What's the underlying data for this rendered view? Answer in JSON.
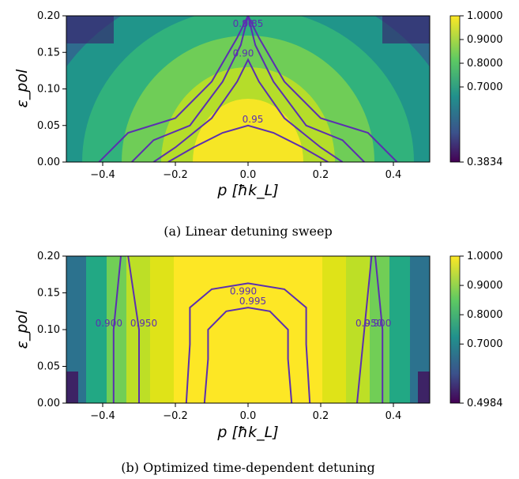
{
  "chart_data": [
    {
      "type": "heatmap",
      "caption": "(a) Linear detuning sweep",
      "xlabel": "p [ħk_L]",
      "ylabel": "ε_pol",
      "xlim": [
        -0.5,
        0.5
      ],
      "ylim": [
        0.0,
        0.2
      ],
      "x_ticks": [
        "−0.4",
        "−0.2",
        "0.0",
        "0.2",
        "0.4"
      ],
      "x_tick_values": [
        -0.4,
        -0.2,
        0.0,
        0.2,
        0.4
      ],
      "y_ticks": [
        "0.00",
        "0.05",
        "0.10",
        "0.15",
        "0.20"
      ],
      "y_tick_values": [
        0.0,
        0.05,
        0.1,
        0.15,
        0.2
      ],
      "colorbar": {
        "min": 0.3834,
        "max": 1.0,
        "ticks": [
          "1.0000",
          "0.9000",
          "0.8000",
          "0.7000",
          "0.3834"
        ],
        "tick_values": [
          1.0,
          0.9,
          0.8,
          0.7,
          0.3834
        ]
      },
      "contours": [
        {
          "label": "0.80",
          "points": [
            [
              -0.41,
              0.0
            ],
            [
              -0.33,
              0.04
            ],
            [
              -0.2,
              0.06
            ],
            [
              -0.1,
              0.11
            ],
            [
              -0.03,
              0.17
            ],
            [
              0.0,
              0.2
            ],
            [
              0.03,
              0.17
            ],
            [
              0.1,
              0.11
            ],
            [
              0.2,
              0.06
            ],
            [
              0.33,
              0.04
            ],
            [
              0.41,
              0.0
            ]
          ]
        },
        {
          "label": "0.85",
          "points": [
            [
              -0.32,
              0.0
            ],
            [
              -0.26,
              0.03
            ],
            [
              -0.16,
              0.05
            ],
            [
              -0.07,
              0.11
            ],
            [
              -0.02,
              0.16
            ],
            [
              0.0,
              0.2
            ],
            [
              0.02,
              0.16
            ],
            [
              0.07,
              0.11
            ],
            [
              0.16,
              0.05
            ],
            [
              0.26,
              0.03
            ],
            [
              0.32,
              0.0
            ]
          ]
        },
        {
          "label": "0.90",
          "points": [
            [
              -0.26,
              0.0
            ],
            [
              -0.2,
              0.02
            ],
            [
              -0.1,
              0.06
            ],
            [
              -0.03,
              0.11
            ],
            [
              0.0,
              0.14
            ],
            [
              0.03,
              0.11
            ],
            [
              0.1,
              0.06
            ],
            [
              0.2,
              0.02
            ],
            [
              0.26,
              0.0
            ]
          ]
        },
        {
          "label": "0.95",
          "points": [
            [
              -0.22,
              0.0
            ],
            [
              -0.15,
              0.02
            ],
            [
              -0.07,
              0.04
            ],
            [
              0.0,
              0.05
            ],
            [
              0.07,
              0.04
            ],
            [
              0.15,
              0.02
            ],
            [
              0.22,
              0.0
            ]
          ]
        }
      ],
      "contour_labels": [
        "0.80",
        "0.85",
        "0.90",
        "0.95",
        "0.85"
      ]
    },
    {
      "type": "heatmap",
      "caption": "(b) Optimized time-dependent detuning",
      "xlabel": "p [ħk_L]",
      "ylabel": "ε_pol",
      "xlim": [
        -0.5,
        0.5
      ],
      "ylim": [
        0.0,
        0.2
      ],
      "x_ticks": [
        "−0.4",
        "−0.2",
        "0.0",
        "0.2",
        "0.4"
      ],
      "x_tick_values": [
        -0.4,
        -0.2,
        0.0,
        0.2,
        0.4
      ],
      "y_ticks": [
        "0.00",
        "0.05",
        "0.10",
        "0.15",
        "0.20"
      ],
      "y_tick_values": [
        0.0,
        0.05,
        0.1,
        0.15,
        0.2
      ],
      "colorbar": {
        "min": 0.4984,
        "max": 1.0,
        "ticks": [
          "1.0000",
          "0.9000",
          "0.8000",
          "0.7000",
          "0.4984"
        ],
        "tick_values": [
          1.0,
          0.9,
          0.8,
          0.7,
          0.4984
        ]
      },
      "contours": [
        {
          "label": "0.900",
          "points": [
            [
              -0.37,
              0.0
            ],
            [
              -0.37,
              0.1
            ],
            [
              -0.35,
              0.2
            ]
          ]
        },
        {
          "label": "0.950",
          "points": [
            [
              -0.3,
              0.0
            ],
            [
              -0.3,
              0.1
            ],
            [
              -0.33,
              0.2
            ]
          ]
        },
        {
          "label": "0.900",
          "points": [
            [
              0.37,
              0.0
            ],
            [
              0.37,
              0.1
            ],
            [
              0.35,
              0.2
            ]
          ]
        },
        {
          "label": "0.950",
          "points": [
            [
              0.3,
              0.0
            ],
            [
              0.32,
              0.1
            ],
            [
              0.34,
              0.2
            ]
          ]
        },
        {
          "label": "0.990",
          "points": [
            [
              -0.17,
              0.0
            ],
            [
              -0.16,
              0.08
            ],
            [
              -0.16,
              0.13
            ],
            [
              -0.1,
              0.155
            ],
            [
              0.0,
              0.163
            ],
            [
              0.1,
              0.155
            ],
            [
              0.16,
              0.13
            ],
            [
              0.16,
              0.08
            ],
            [
              0.17,
              0.0
            ]
          ]
        },
        {
          "label": "0.995",
          "points": [
            [
              -0.12,
              0.0
            ],
            [
              -0.11,
              0.06
            ],
            [
              -0.11,
              0.1
            ],
            [
              -0.06,
              0.125
            ],
            [
              0.0,
              0.13
            ],
            [
              0.06,
              0.125
            ],
            [
              0.11,
              0.1
            ],
            [
              0.11,
              0.06
            ],
            [
              0.12,
              0.0
            ]
          ]
        }
      ],
      "contour_labels": [
        "0.900",
        "0.950",
        "0.990",
        "0.995",
        "0.950",
        "0.900"
      ]
    }
  ]
}
